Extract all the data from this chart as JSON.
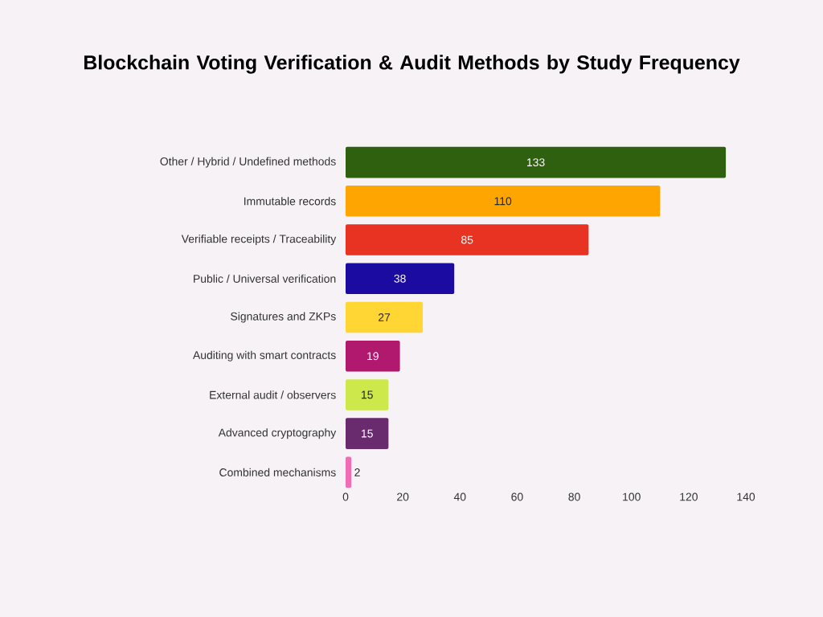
{
  "chart_data": {
    "type": "bar",
    "orientation": "horizontal",
    "title": "Blockchain Voting Verification & Audit Methods by Study Frequency",
    "categories": [
      "Other / Hybrid / Undefined methods",
      "Immutable records",
      "Verifiable receipts / Traceability",
      "Public / Universal verification",
      "Signatures and ZKPs",
      "Auditing with smart contracts",
      "External audit / observers",
      "Advanced cryptography",
      "Combined mechanisms"
    ],
    "values": [
      133,
      110,
      85,
      38,
      27,
      19,
      15,
      15,
      2
    ],
    "colors": [
      "#2f600f",
      "#ffa502",
      "#e83222",
      "#1b0ba0",
      "#ffd633",
      "#b0196e",
      "#cce84a",
      "#6a2a6e",
      "#f06cb4"
    ],
    "xlim": [
      0,
      140
    ],
    "xticks": [
      0,
      20,
      40,
      60,
      80,
      100,
      120,
      140
    ],
    "data_labels": true
  }
}
